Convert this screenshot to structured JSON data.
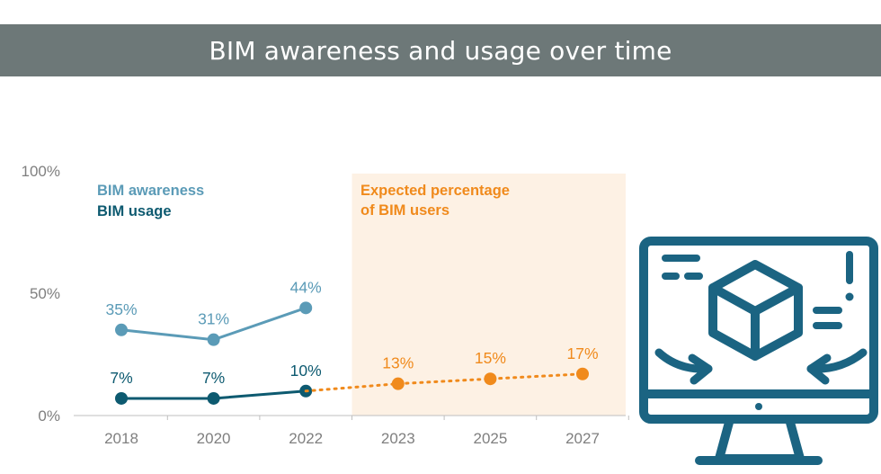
{
  "title": "BIM awareness and usage over time",
  "colors": {
    "title_bar": "#6d7878",
    "awareness": "#5b9bb7",
    "usage": "#0d5a70",
    "forecast": "#f08a1c",
    "forecast_band": "#fdf1e4",
    "icon": "#1b6482",
    "axis_text": "#7f7f7f"
  },
  "legend": {
    "awareness": "BIM awareness",
    "usage": "BIM usage",
    "forecast_line1": "Expected percentage",
    "forecast_line2": "of BIM users"
  },
  "icon": "computer-monitor-box-icon",
  "chart_data": {
    "type": "line",
    "categories": [
      "2018",
      "2020",
      "2022",
      "2023",
      "2025",
      "2027"
    ],
    "ylim": [
      0,
      100
    ],
    "yticks": [
      "0%",
      "50%",
      "100%"
    ],
    "shaded_region": {
      "from": "2023",
      "to": "2027",
      "label": "Expected percentage of BIM users"
    },
    "series": [
      {
        "name": "BIM awareness",
        "values": [
          35,
          31,
          44,
          null,
          null,
          null
        ],
        "labels": [
          "35%",
          "31%",
          "44%",
          "",
          "",
          ""
        ],
        "style": "solid",
        "color": "#5b9bb7"
      },
      {
        "name": "BIM usage",
        "values": [
          7,
          7,
          10,
          null,
          null,
          null
        ],
        "labels": [
          "7%",
          "7%",
          "10%",
          "",
          "",
          ""
        ],
        "style": "solid",
        "color": "#0d5a70"
      },
      {
        "name": "Expected percentage of BIM users",
        "values": [
          null,
          null,
          10,
          13,
          15,
          17
        ],
        "labels": [
          "",
          "",
          "",
          "13%",
          "15%",
          "17%"
        ],
        "style": "dotted",
        "color": "#f08a1c"
      }
    ]
  }
}
